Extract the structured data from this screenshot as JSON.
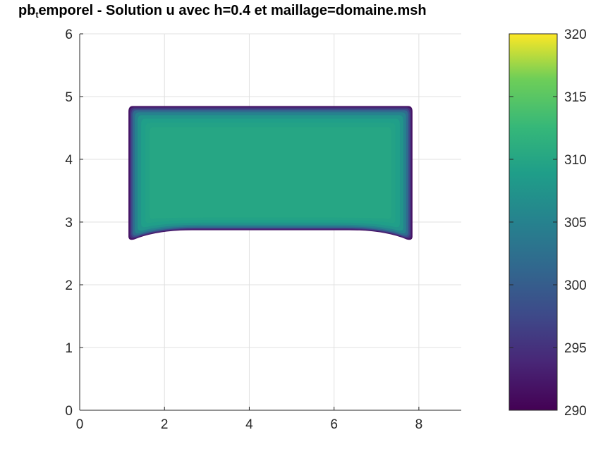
{
  "chart_data": {
    "type": "heatmap",
    "title": {
      "prefix": "pb",
      "subscript": "t",
      "suffix": "emporel - Solution u avec h=0.4 et maillage=domaine.msh"
    },
    "xlabel": "",
    "ylabel": "",
    "xlim": [
      0,
      9
    ],
    "ylim": [
      0,
      6
    ],
    "xticks": [
      0,
      2,
      4,
      6,
      8
    ],
    "yticks": [
      0,
      1,
      2,
      3,
      4,
      5,
      6
    ],
    "grid": true,
    "colormap": "viridis",
    "colorbar": {
      "range": [
        290,
        320
      ],
      "ticks": [
        290,
        295,
        300,
        305,
        310,
        315,
        320
      ]
    },
    "domain": {
      "description_x_range": [
        1.15,
        7.85
      ],
      "y_range": [
        2.7,
        4.85
      ],
      "interior_value": 310,
      "boundary_value": 293
    }
  }
}
